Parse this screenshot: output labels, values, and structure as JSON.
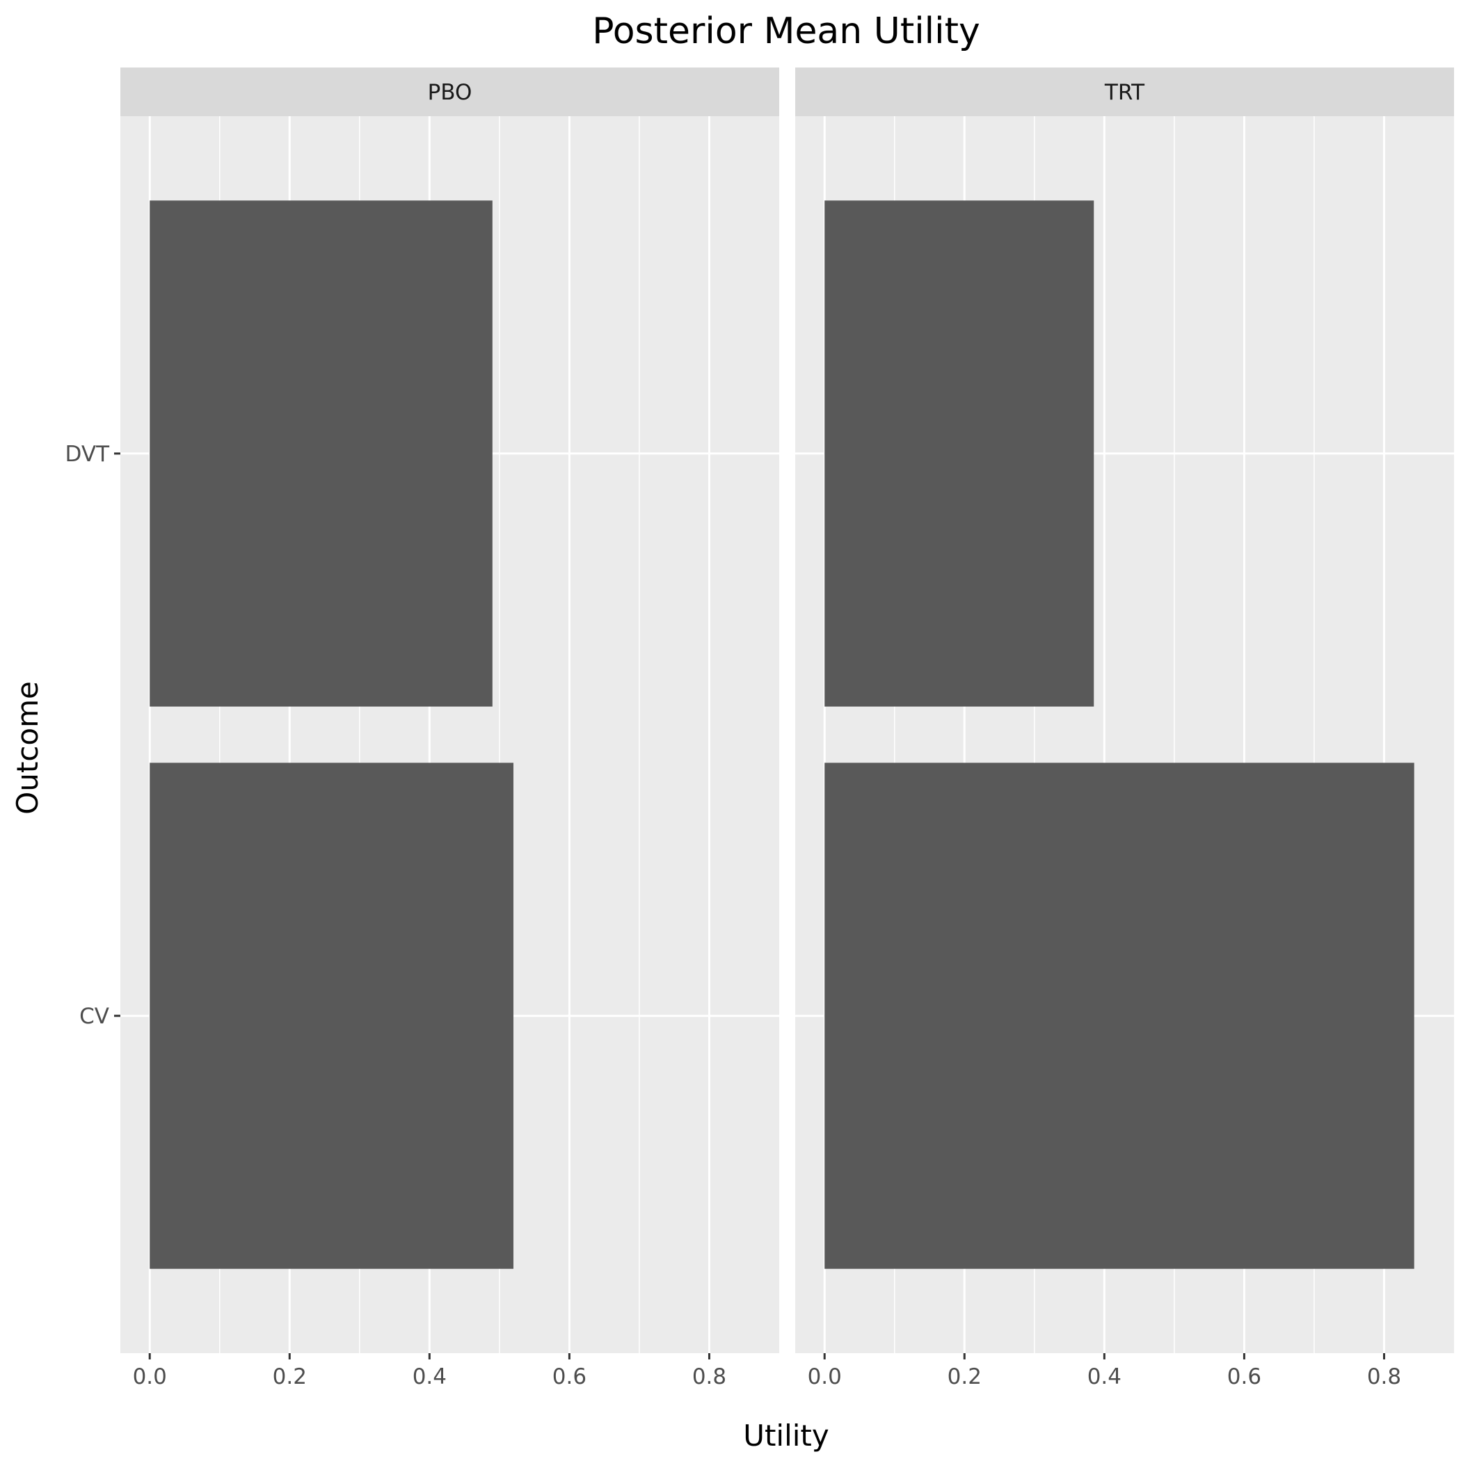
{
  "chart_data": {
    "type": "bar",
    "orientation": "horizontal",
    "title": "Posterior Mean Utility",
    "xlabel": "Utility",
    "ylabel": "Outcome",
    "categories": [
      "DVT",
      "CV"
    ],
    "xlim": [
      -0.042,
      0.9
    ],
    "x_ticks": [
      "0.0",
      "0.2",
      "0.4",
      "0.6",
      "0.8"
    ],
    "x_tick_values": [
      0,
      0.2,
      0.4,
      0.6,
      0.8
    ],
    "grid": true,
    "bar_color": "#595959",
    "panel_background": "#ebebeb",
    "strip_background": "#d9d9d9",
    "facets": [
      {
        "label": "PBO",
        "values": [
          0.49,
          0.52
        ]
      },
      {
        "label": "TRT",
        "values": [
          0.385,
          0.843
        ]
      }
    ]
  }
}
